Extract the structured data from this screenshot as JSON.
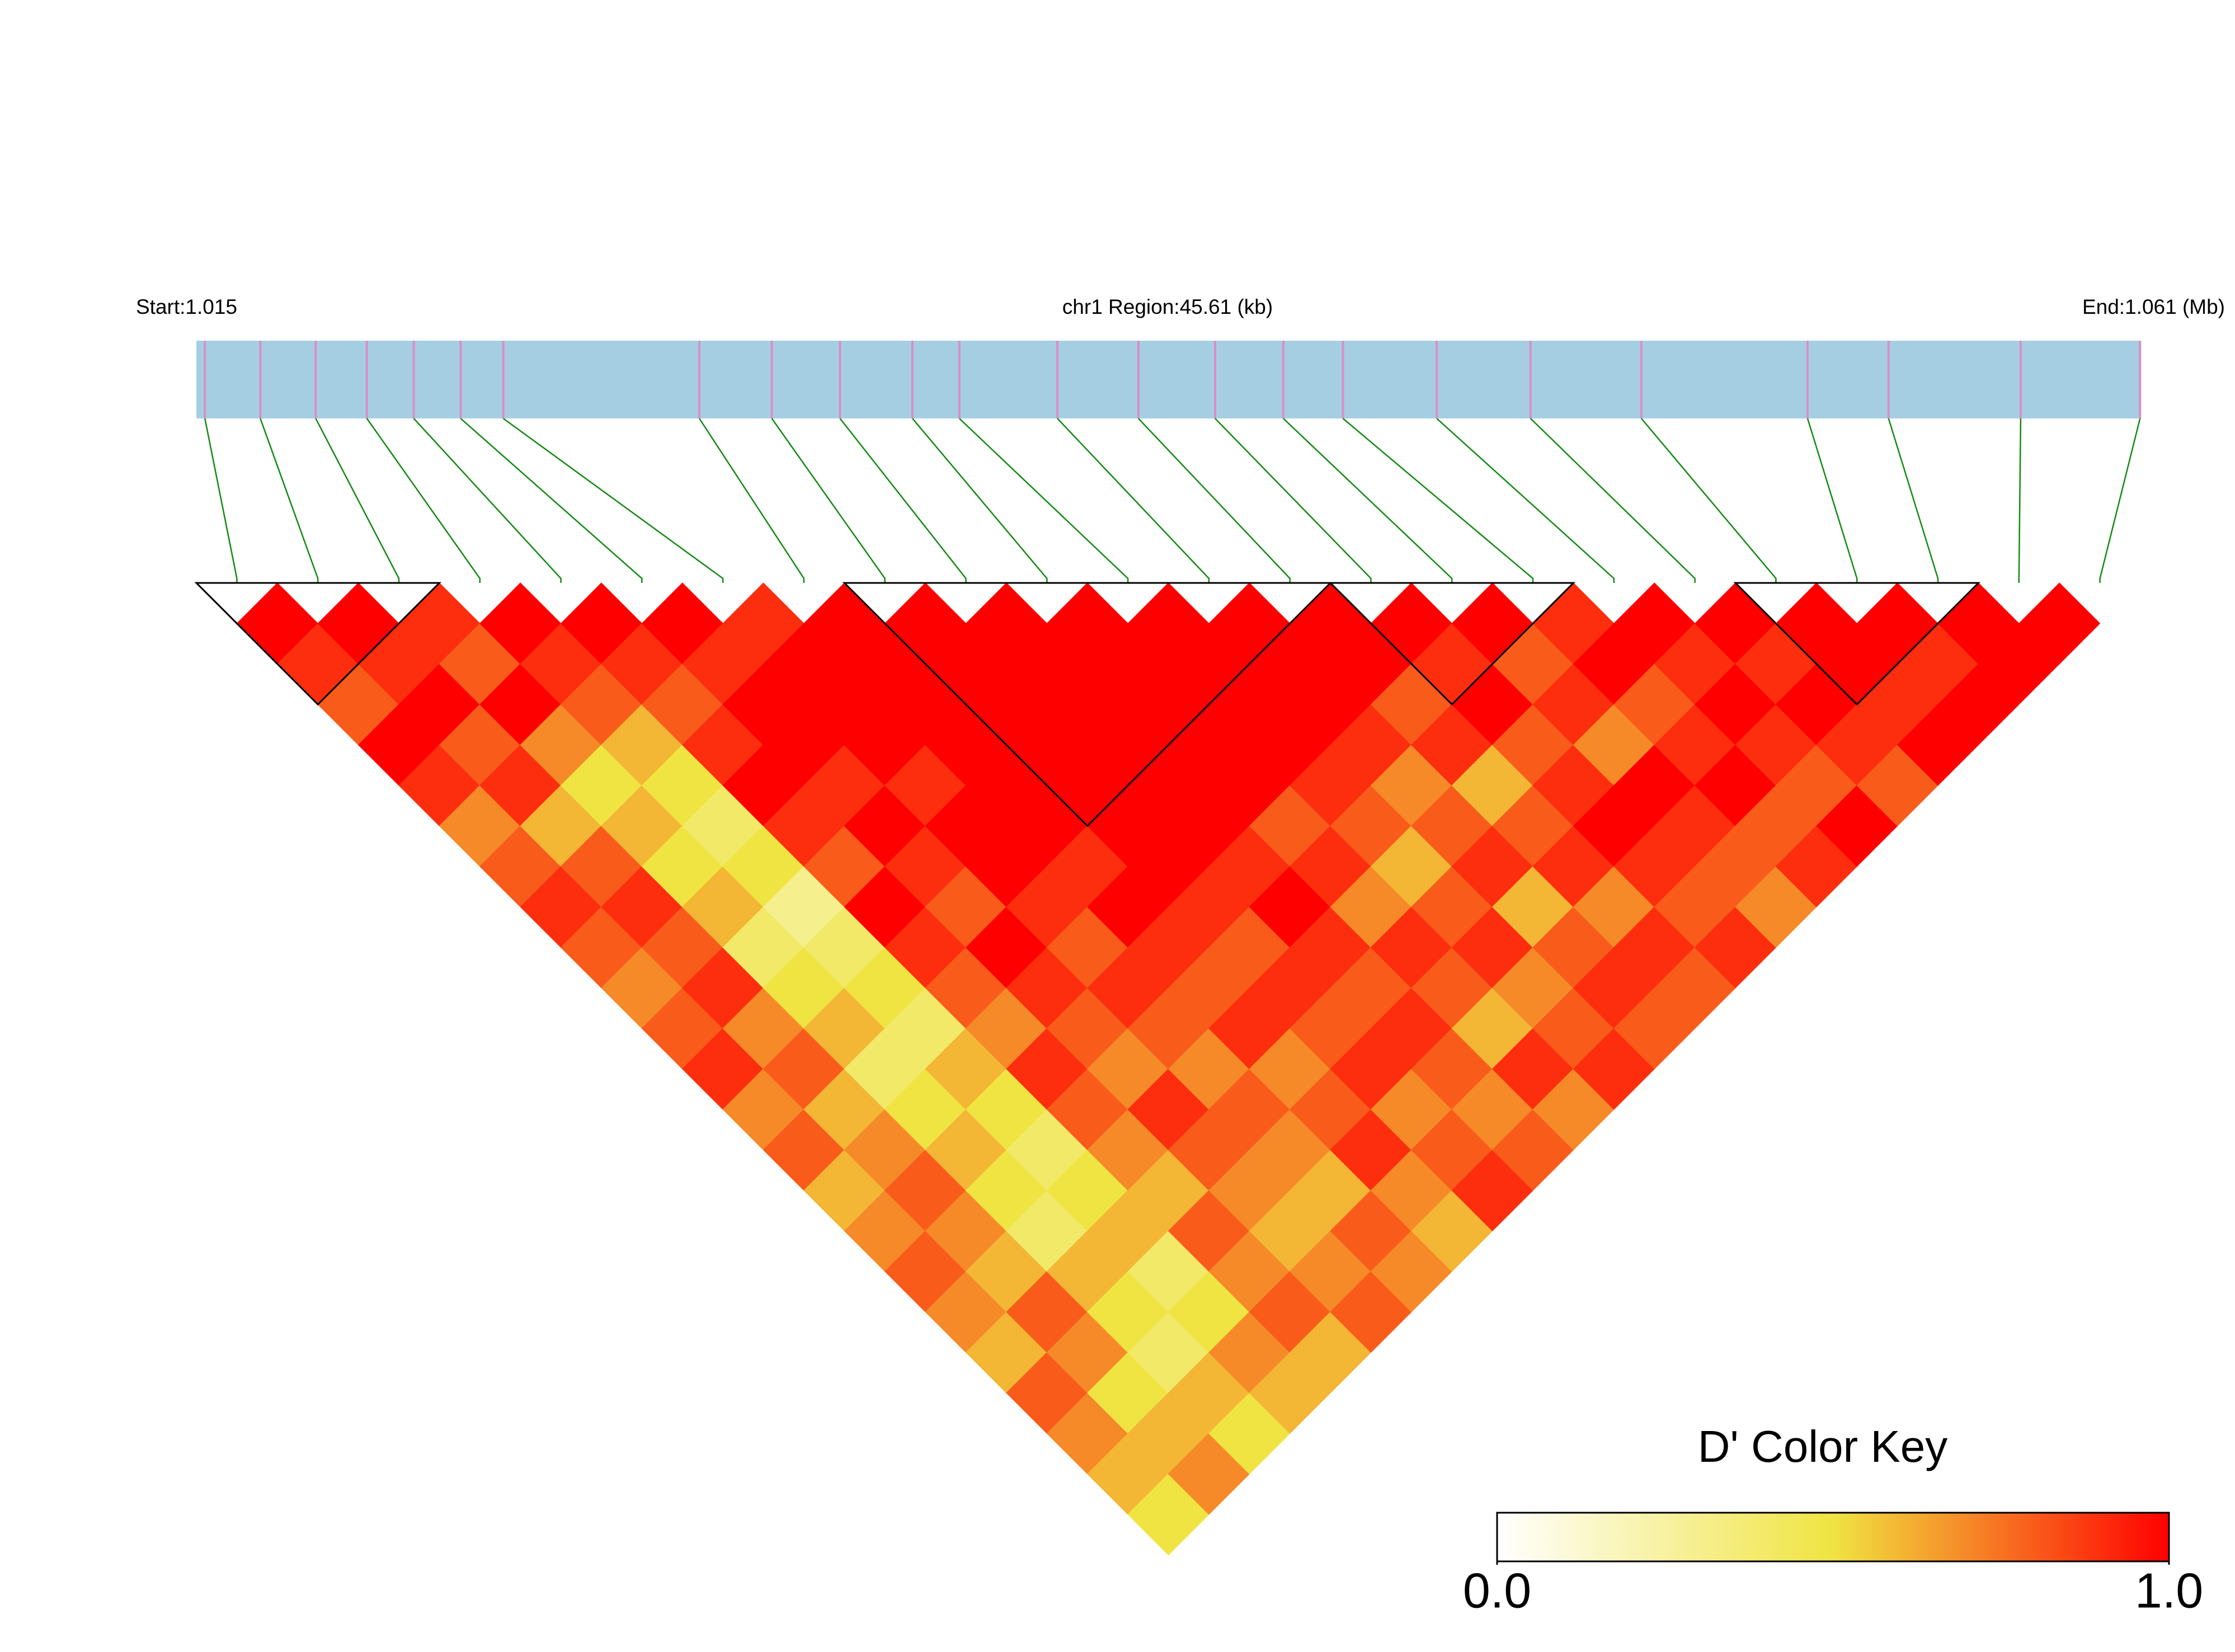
{
  "chart_data": {
    "type": "ld-heatmap",
    "start_label": "Start:1.015",
    "region_label": "chr1 Region:45.61 (kb)",
    "end_label": "End:1.061 (Mb)",
    "xlim": [
      1.015,
      1.06061
    ],
    "positions": [
      1.0152,
      1.0165,
      1.0178,
      1.019,
      1.0201,
      1.0212,
      1.0222,
      1.0268,
      1.0285,
      1.0301,
      1.0318,
      1.0329,
      1.0352,
      1.0371,
      1.0389,
      1.0405,
      1.0419,
      1.0441,
      1.0463,
      1.0489,
      1.0528,
      1.0547,
      1.0578,
      1.0606
    ],
    "matrix": [
      [
        1,
        0.9,
        0.8,
        1,
        0.9,
        0.7,
        0.8,
        0.9,
        0.8,
        0.7,
        0.8,
        0.9,
        0.7,
        0.8,
        0.6,
        0.7,
        0.8,
        0.7,
        0.6,
        0.8,
        0.7,
        0.6,
        0.5
      ],
      [
        1,
        0.9,
        1,
        0.8,
        0.9,
        0.6,
        0.8,
        0.9,
        0.8,
        0.9,
        0.7,
        0.8,
        0.6,
        0.7,
        0.8,
        0.7,
        0.6,
        0.8,
        0.7,
        0.5,
        0.6,
        0.7
      ],
      [
        0.9,
        0.8,
        1,
        0.7,
        0.5,
        0.6,
        0.5,
        0.6,
        0.4,
        0.5,
        0.6,
        0.4,
        0.5,
        0.6,
        0.5,
        0.4,
        0.6,
        0.5,
        0.4,
        0.6,
        0.5
      ],
      [
        1,
        0.9,
        0.8,
        0.6,
        0.5,
        0.4,
        0.5,
        0.3,
        0.4,
        0.5,
        0.4,
        0.6,
        0.5,
        0.4,
        0.5,
        0.6,
        0.4,
        0.5,
        0.7,
        0.6
      ],
      [
        1,
        0.9,
        0.8,
        0.9,
        1,
        0.9,
        0.8,
        1,
        0.9,
        0.8,
        0.7,
        0.9,
        0.8,
        0.7,
        0.6,
        0.8,
        0.7,
        0.8,
        0.6
      ],
      [
        1,
        0.9,
        1,
        1,
        0.9,
        1,
        0.9,
        0.8,
        1,
        0.9,
        0.8,
        0.7,
        0.9,
        0.8,
        0.7,
        0.6,
        0.7,
        0.8
      ],
      [
        0.9,
        1,
        1,
        1,
        0.9,
        1,
        1,
        0.9,
        0.8,
        0.9,
        0.8,
        0.7,
        0.8,
        0.7,
        0.6,
        0.8,
        0.7
      ],
      [
        1,
        1,
        1,
        1,
        1,
        1,
        0.9,
        1,
        0.9,
        0.8,
        0.9,
        0.7,
        0.8,
        0.9,
        0.7,
        0.6
      ],
      [
        1,
        1,
        1,
        1,
        1,
        1,
        1,
        0.9,
        0.8,
        0.9,
        0.8,
        0.9,
        0.7,
        0.8,
        0.9
      ],
      [
        1,
        1,
        1,
        1,
        1,
        1,
        0.9,
        1,
        0.9,
        0.8,
        0.9,
        0.8,
        0.7,
        0.8
      ],
      [
        1,
        1,
        1,
        1,
        1,
        0.8,
        0.9,
        0.7,
        0.9,
        0.8,
        0.6,
        0.9,
        0.7
      ],
      [
        1,
        1,
        1,
        1,
        0.9,
        0.8,
        0.6,
        0.8,
        0.9,
        0.7,
        0.8,
        0.9
      ],
      [
        1,
        1,
        1,
        0.9,
        0.7,
        0.8,
        0.9,
        0.6,
        0.8,
        0.9,
        0.8
      ],
      [
        1,
        1,
        0.8,
        0.9,
        0.6,
        0.8,
        0.9,
        0.7,
        0.9,
        0.8
      ],
      [
        1,
        0.9,
        1,
        0.8,
        0.9,
        1,
        0.9,
        0.8,
        0.9
      ],
      [
        1,
        0.8,
        0.9,
        0.7,
        1,
        0.9,
        0.8,
        0.7
      ],
      [
        0.9,
        1,
        0.8,
        0.9,
        1,
        0.8,
        0.9
      ],
      [
        1,
        0.9,
        1,
        0.9,
        0.8,
        1
      ],
      [
        1,
        0.9,
        1,
        0.9,
        0.8
      ],
      [
        1,
        1,
        0.9,
        1
      ],
      [
        1,
        0.9,
        1
      ],
      [
        1,
        1
      ],
      [
        1
      ]
    ],
    "blocks": [
      [
        0,
        2
      ],
      [
        8,
        13
      ],
      [
        14,
        16
      ],
      [
        19,
        21
      ]
    ],
    "colormap": [
      "#ffffff",
      "#f0e442",
      "#ff0000"
    ],
    "bar_color": "#a6cee3",
    "marker_color": "#d98fc4",
    "connector_color": "#138a13",
    "colorbar_title": "D' Color Key",
    "clim": [
      0,
      1
    ],
    "cticks": [
      {
        "value": 0,
        "label": "0.0"
      },
      {
        "value": 1,
        "label": "1.0"
      }
    ]
  }
}
